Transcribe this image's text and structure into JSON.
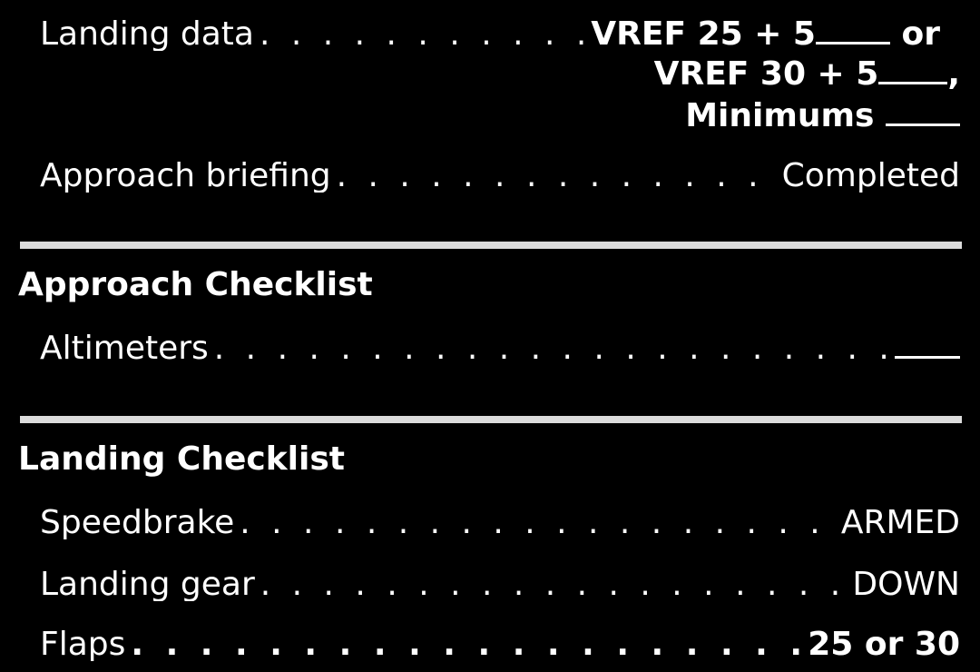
{
  "landing_data": {
    "label": "Landing data",
    "dots": ". . . . . . . . . . . . .",
    "line1": "VREF 25 + 5",
    "line1_suffix": "or",
    "line2": "VREF 30 + 5",
    "line2_suffix": ",",
    "line3": "Minimums"
  },
  "approach_briefing": {
    "label": "Approach briefing",
    "dots": ". . . . . . . . . . . . . . . . .",
    "value": "Completed"
  },
  "approach_checklist": {
    "title": "Approach Checklist",
    "items": [
      {
        "label": "Altimeters",
        "dots": ". . . . . . . . . . . . . . . . . . . . . . . . ."
      }
    ]
  },
  "landing_checklist": {
    "title": "Landing Checklist",
    "items": [
      {
        "label": "Speedbrake",
        "dots": ". . . . . . . . . . . . . . . . . . . . . . . . .",
        "value": "ARMED"
      },
      {
        "label": "Landing gear",
        "dots": ". . . . . . . . . . . . . . . . . . . . . . . . .",
        "value": "DOWN"
      },
      {
        "label": "Flaps",
        "dots": ". . . . . . . . . . . . . . . . . . . . . . . . . . . .",
        "value": "25 or 30"
      }
    ]
  }
}
